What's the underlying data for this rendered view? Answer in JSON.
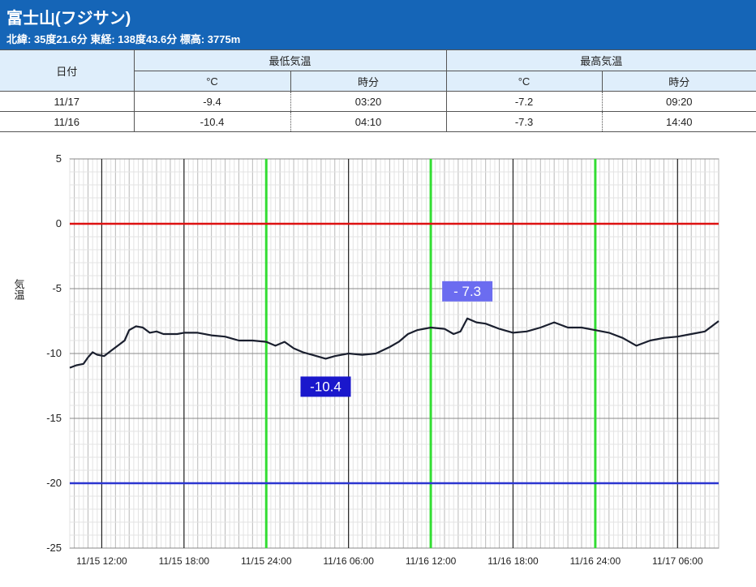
{
  "station": {
    "title": "富士山(フジサン)",
    "subtitle": "北緯: 35度21.6分 東経: 138度43.6分 標高: 3775m"
  },
  "table": {
    "col_date": "日付",
    "group_min": "最低気温",
    "group_max": "最高気温",
    "unit_c": "°C",
    "unit_time": "時分",
    "rows": [
      {
        "date": "11/17",
        "min_c": "-9.4",
        "min_time": "03:20",
        "max_c": "-7.2",
        "max_time": "09:20"
      },
      {
        "date": "11/16",
        "min_c": "-10.4",
        "min_time": "04:10",
        "max_c": "-7.3",
        "max_time": "14:40"
      }
    ]
  },
  "chart_data": {
    "type": "line",
    "ylabel": "気温",
    "ylim": [
      -25,
      5
    ],
    "yticks": [
      "5",
      "0",
      "-5",
      "-10",
      "-15",
      "-20",
      "-25"
    ],
    "xlim_hours": [
      "11/15 09:40",
      "11/17 09:00"
    ],
    "xticks": [
      "11/15 12:00",
      "11/15 18:00",
      "11/15 24:00",
      "11/16 06:00",
      "11/16 12:00",
      "11/16 18:00",
      "11/16 24:00",
      "11/17 06:00"
    ],
    "reference_lines": [
      {
        "value": 0,
        "color": "#dd1111"
      },
      {
        "value": -20,
        "color": "#2b35d0"
      }
    ],
    "day_boundaries": [
      "11/15 24:00",
      "11/16 12:00",
      "11/16 24:00"
    ],
    "day_boundary_color": "#33dd33",
    "grid": true,
    "series": [
      {
        "color": "#1a1f2e",
        "points": [
          [
            "11/15 09:40",
            -11.1
          ],
          [
            "11/15 10:10",
            -10.9
          ],
          [
            "11/15 10:40",
            -10.8
          ],
          [
            "11/15 11:00",
            -10.3
          ],
          [
            "11/15 11:20",
            -9.9
          ],
          [
            "11/15 11:40",
            -10.1
          ],
          [
            "11/15 12:10",
            -10.2
          ],
          [
            "11/15 12:40",
            -9.8
          ],
          [
            "11/15 13:10",
            -9.4
          ],
          [
            "11/15 13:40",
            -9.0
          ],
          [
            "11/15 14:00",
            -8.2
          ],
          [
            "11/15 14:30",
            -7.9
          ],
          [
            "11/15 15:00",
            -8.0
          ],
          [
            "11/15 15:30",
            -8.4
          ],
          [
            "11/15 16:00",
            -8.3
          ],
          [
            "11/15 16:30",
            -8.5
          ],
          [
            "11/15 17:30",
            -8.5
          ],
          [
            "11/15 18:00",
            -8.4
          ],
          [
            "11/15 19:00",
            -8.4
          ],
          [
            "11/15 20:00",
            -8.6
          ],
          [
            "11/15 21:00",
            -8.7
          ],
          [
            "11/15 22:00",
            -9.0
          ],
          [
            "11/15 23:00",
            -9.0
          ],
          [
            "11/15 24:00",
            -9.1
          ],
          [
            "11/16 00:40",
            -9.4
          ],
          [
            "11/16 01:20",
            -9.1
          ],
          [
            "11/16 02:00",
            -9.6
          ],
          [
            "11/16 02:40",
            -9.9
          ],
          [
            "11/16 03:20",
            -10.1
          ],
          [
            "11/16 04:00",
            -10.3
          ],
          [
            "11/16 04:20",
            -10.4
          ],
          [
            "11/16 05:00",
            -10.2
          ],
          [
            "11/16 06:00",
            -10.0
          ],
          [
            "11/16 07:00",
            -10.1
          ],
          [
            "11/16 08:00",
            -10.0
          ],
          [
            "11/16 09:00",
            -9.5
          ],
          [
            "11/16 09:40",
            -9.1
          ],
          [
            "11/16 10:20",
            -8.5
          ],
          [
            "11/16 11:00",
            -8.2
          ],
          [
            "11/16 12:00",
            -8.0
          ],
          [
            "11/16 13:00",
            -8.1
          ],
          [
            "11/16 13:40",
            -8.5
          ],
          [
            "11/16 14:10",
            -8.3
          ],
          [
            "11/16 14:40",
            -7.3
          ],
          [
            "11/16 15:20",
            -7.6
          ],
          [
            "11/16 16:00",
            -7.7
          ],
          [
            "11/16 17:00",
            -8.1
          ],
          [
            "11/16 18:00",
            -8.4
          ],
          [
            "11/16 19:00",
            -8.3
          ],
          [
            "11/16 20:00",
            -8.0
          ],
          [
            "11/16 21:00",
            -7.6
          ],
          [
            "11/16 22:00",
            -8.0
          ],
          [
            "11/16 23:00",
            -8.0
          ],
          [
            "11/16 24:00",
            -8.2
          ],
          [
            "11/17 01:00",
            -8.4
          ],
          [
            "11/17 02:00",
            -8.8
          ],
          [
            "11/17 03:00",
            -9.4
          ],
          [
            "11/17 04:00",
            -9.0
          ],
          [
            "11/17 05:00",
            -8.8
          ],
          [
            "11/17 06:00",
            -8.7
          ],
          [
            "11/17 07:00",
            -8.5
          ],
          [
            "11/17 08:00",
            -8.3
          ],
          [
            "11/17 09:00",
            -7.5
          ]
        ]
      }
    ],
    "annotations": [
      {
        "text": "-10.4",
        "at": "11/16 04:20",
        "bg": "#1a17cc"
      },
      {
        "text": "- 7.3",
        "at": "11/16 14:40",
        "bg": "#6b6cf0"
      }
    ]
  }
}
